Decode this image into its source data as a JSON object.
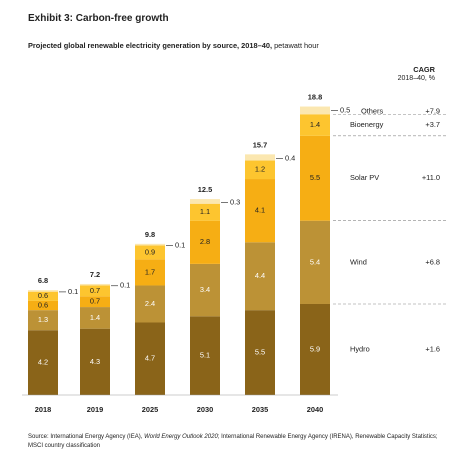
{
  "header": {
    "exhibit_title": "Exhibit 3: Carbon-free growth",
    "subtitle_bold": "Projected global renewable electricity generation by source, 2018–40,",
    "subtitle_unit": "petawatt hour",
    "cagr_title": "CAGR",
    "cagr_subtitle": "2018–40, %"
  },
  "colors": {
    "Hydro": "#8a6419",
    "Wind": "#bc9236",
    "Solar PV": "#f6ae14",
    "Bioenergy": "#fdc52f",
    "Others": "#fbe7b0"
  },
  "chart_data": {
    "type": "bar",
    "stacked": true,
    "categories": [
      "2018",
      "2019",
      "2025",
      "2030",
      "2035",
      "2040"
    ],
    "series": [
      {
        "name": "Hydro",
        "values": [
          4.2,
          4.3,
          4.7,
          5.1,
          5.5,
          5.9
        ],
        "labels": [
          "4.2",
          "4.3",
          "4.7",
          "5.1",
          "5.5",
          "5.9"
        ],
        "cagr": "+1.6"
      },
      {
        "name": "Wind",
        "values": [
          1.3,
          1.4,
          2.4,
          3.4,
          4.4,
          5.4
        ],
        "labels": [
          "1.3",
          "1.4",
          "2.4",
          "3.4",
          "4.4",
          "5.4"
        ],
        "cagr": "+6.8"
      },
      {
        "name": "Solar PV",
        "values": [
          0.6,
          0.7,
          1.7,
          2.8,
          4.1,
          5.5
        ],
        "labels": [
          "0.6",
          "0.7",
          "1.7",
          "2.8",
          "4.1",
          "5.5"
        ],
        "cagr": "+11.0"
      },
      {
        "name": "Bioenergy",
        "values": [
          0.6,
          0.7,
          0.9,
          1.1,
          1.2,
          1.4
        ],
        "labels": [
          "0.6",
          "0.7",
          "0.9",
          "1.1",
          "1.2",
          "1.4"
        ],
        "cagr": "+3.7"
      },
      {
        "name": "Others",
        "values": [
          0.1,
          0.1,
          0.1,
          0.3,
          0.4,
          0.5
        ],
        "labels": [
          "0.1",
          "0.1",
          "0.1",
          "0.3",
          "0.4",
          "0.5"
        ],
        "cagr": "+7.9"
      }
    ],
    "totals": [
      "6.8",
      "7.2",
      "9.8",
      "12.5",
      "15.7",
      "18.8"
    ],
    "ylim": [
      0,
      18.8
    ]
  },
  "source": {
    "prefix": "Source: International Energy Agency (IEA),",
    "italic": "World Energy Outlook 2020",
    "suffix": "; International Renewable Energy Agency (IRENA), Renewable Capacity Statistics; MSCI country classification"
  }
}
